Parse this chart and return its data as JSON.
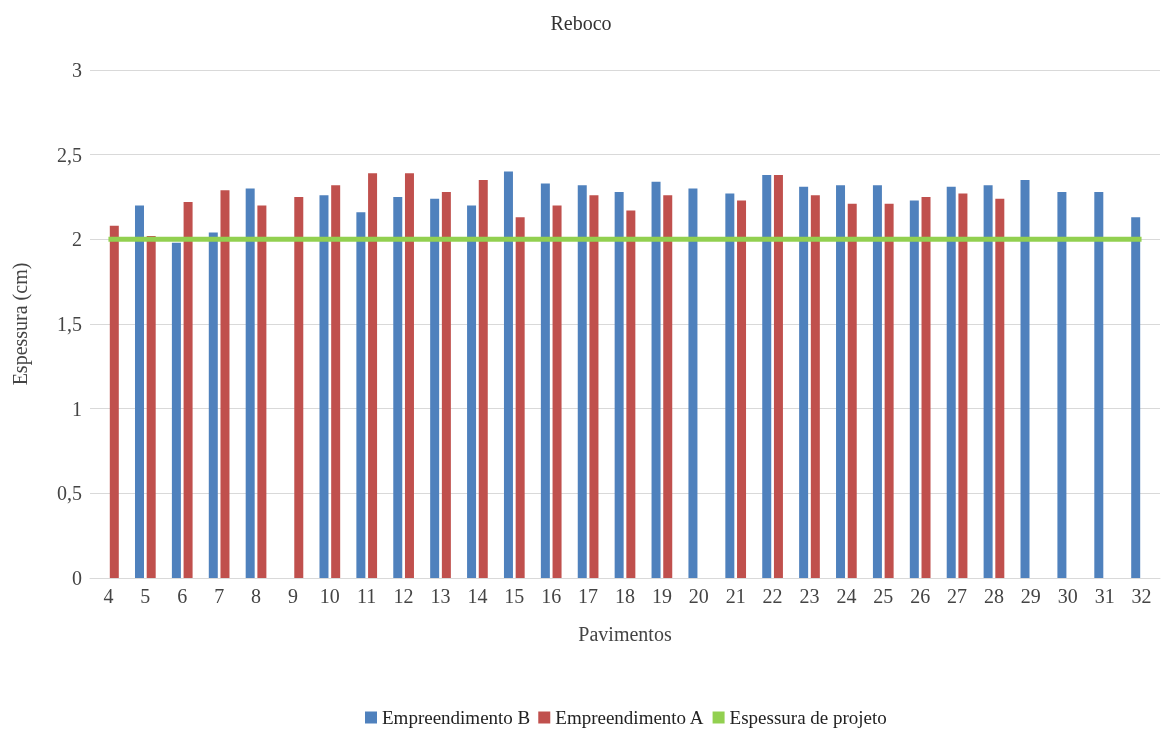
{
  "chart_data": {
    "type": "bar",
    "title": "Reboco",
    "xlabel": "Pavimentos",
    "ylabel": "Espessura (cm)",
    "categories": [
      "4",
      "5",
      "6",
      "7",
      "8",
      "9",
      "10",
      "11",
      "12",
      "13",
      "14",
      "15",
      "16",
      "17",
      "18",
      "19",
      "20",
      "21",
      "22",
      "23",
      "24",
      "25",
      "26",
      "27",
      "28",
      "29",
      "30",
      "31",
      "32"
    ],
    "series": [
      {
        "name": "Empreendimento B",
        "color": "#4f81bd",
        "values": [
          null,
          2.2,
          1.98,
          2.04,
          2.3,
          null,
          2.26,
          2.16,
          2.25,
          2.24,
          2.2,
          2.4,
          2.33,
          2.32,
          2.28,
          2.34,
          2.3,
          2.27,
          2.38,
          2.31,
          2.32,
          2.32,
          2.23,
          2.31,
          2.32,
          2.35,
          2.28,
          2.28,
          2.13
        ]
      },
      {
        "name": "Empreendimento A",
        "color": "#c0504d",
        "values": [
          2.08,
          2.02,
          2.22,
          2.29,
          2.2,
          2.25,
          2.32,
          2.39,
          2.39,
          2.28,
          2.35,
          2.13,
          2.2,
          2.26,
          2.17,
          2.26,
          null,
          2.23,
          2.38,
          2.26,
          2.21,
          2.21,
          2.25,
          2.27,
          2.24,
          null,
          null,
          null,
          null
        ]
      },
      {
        "name": "Espessura de projeto",
        "type": "line",
        "color": "#92d050",
        "marker": "none",
        "values": [
          2,
          2,
          2,
          2,
          2,
          2,
          2,
          2,
          2,
          2,
          2,
          2,
          2,
          2,
          2,
          2,
          2,
          2,
          2,
          2,
          2,
          2,
          2,
          2,
          2,
          2,
          2,
          2,
          2
        ]
      }
    ],
    "ylim": [
      0,
      3
    ],
    "yticks": [
      0,
      {
        "value": 0.5,
        "label": "0,5"
      },
      1,
      {
        "value": 1.5,
        "label": "1,5"
      },
      2,
      {
        "value": 2.5,
        "label": "2,5"
      },
      3
    ],
    "grid": "y",
    "legend": "bottom"
  }
}
